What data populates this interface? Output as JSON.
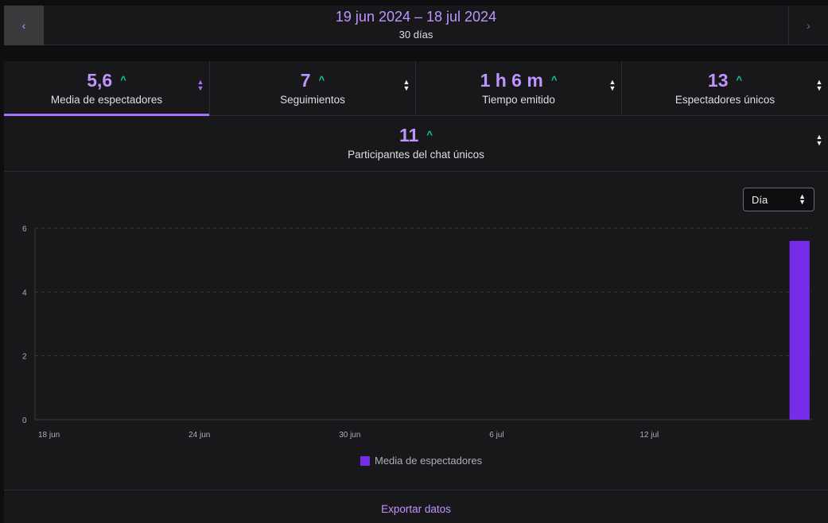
{
  "date_nav": {
    "prev_icon": "chevron-left-icon",
    "next_icon": "chevron-right-icon",
    "range": "19 jun 2024 – 18 jul 2024",
    "days": "30 días"
  },
  "stats": [
    {
      "value": "5,6",
      "label": "Media de espectadores",
      "active": true
    },
    {
      "value": "7",
      "label": "Seguimientos",
      "active": false
    },
    {
      "value": "1 h 6 m",
      "label": "Tiempo emitido",
      "active": false
    },
    {
      "value": "13",
      "label": "Espectadores únicos",
      "active": false
    }
  ],
  "stat_wide": {
    "value": "11",
    "label": "Participantes del chat únicos"
  },
  "trend_symbol": "^",
  "granularity": {
    "selected": "Día"
  },
  "chart_data": {
    "type": "bar",
    "title": "",
    "xlabel": "",
    "ylabel": "",
    "ylim": [
      0,
      6
    ],
    "yticks": [
      "0",
      "2",
      "4",
      "6"
    ],
    "xticks": [
      "18 jun",
      "24 jun",
      "30 jun",
      "6 jul",
      "12 jul"
    ],
    "categories": [
      "2024-06-18",
      "2024-06-19",
      "2024-06-20",
      "2024-06-21",
      "2024-06-22",
      "2024-06-23",
      "2024-06-24",
      "2024-06-25",
      "2024-06-26",
      "2024-06-27",
      "2024-06-28",
      "2024-06-29",
      "2024-06-30",
      "2024-07-01",
      "2024-07-02",
      "2024-07-03",
      "2024-07-04",
      "2024-07-05",
      "2024-07-06",
      "2024-07-07",
      "2024-07-08",
      "2024-07-09",
      "2024-07-10",
      "2024-07-11",
      "2024-07-12",
      "2024-07-13",
      "2024-07-14",
      "2024-07-15",
      "2024-07-16",
      "2024-07-17",
      "2024-07-18"
    ],
    "series": [
      {
        "name": "Media de espectadores",
        "color": "#772ce8",
        "values": [
          0,
          0,
          0,
          0,
          0,
          0,
          0,
          0,
          0,
          0,
          0,
          0,
          0,
          0,
          0,
          0,
          0,
          0,
          0,
          0,
          0,
          0,
          0,
          0,
          0,
          0,
          0,
          0,
          0,
          0,
          5.6
        ]
      }
    ],
    "grid": true,
    "legend_position": "bottom"
  },
  "footer": {
    "export_label": "Exportar datos"
  }
}
